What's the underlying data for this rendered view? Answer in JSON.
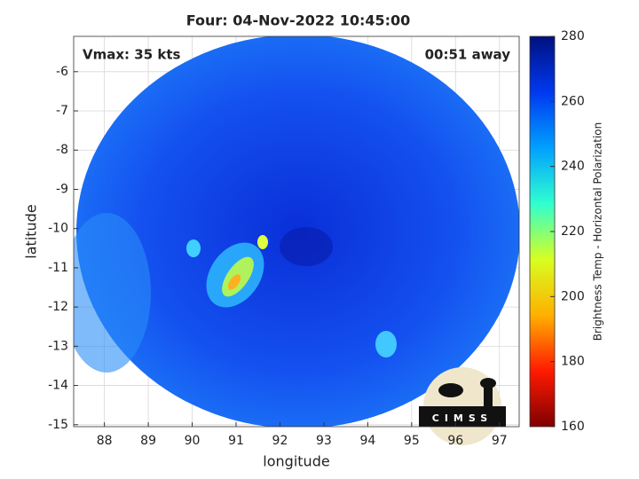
{
  "chart_data": {
    "type": "image-map",
    "title": "Four: 04-Nov-2022 10:45:00",
    "annotations": [
      "Vmax: 35 kts",
      "00:51 away"
    ],
    "xlabel": "longitude",
    "ylabel": "latitude",
    "xlim": [
      87.3,
      97.45
    ],
    "xticks": [
      88,
      89,
      90,
      91,
      92,
      93,
      94,
      95,
      96,
      97
    ],
    "ylim": [
      -15.05,
      -5.1
    ],
    "yticks": [
      -6,
      -7,
      -8,
      -9,
      -10,
      -11,
      -12,
      -13,
      -14,
      -15
    ],
    "grid": true,
    "colorbar": {
      "label": "Brightness Temp - Horizontal Polarization",
      "clim": [
        160,
        280
      ],
      "ticks": [
        160,
        180,
        200,
        220,
        240,
        260,
        280
      ],
      "colormap": [
        "#7f0000",
        "#ff1a00",
        "#ffb000",
        "#d8ff20",
        "#30ffd0",
        "#00a0ff",
        "#0038f0",
        "#00107f"
      ]
    },
    "logo": "CIMSS"
  }
}
